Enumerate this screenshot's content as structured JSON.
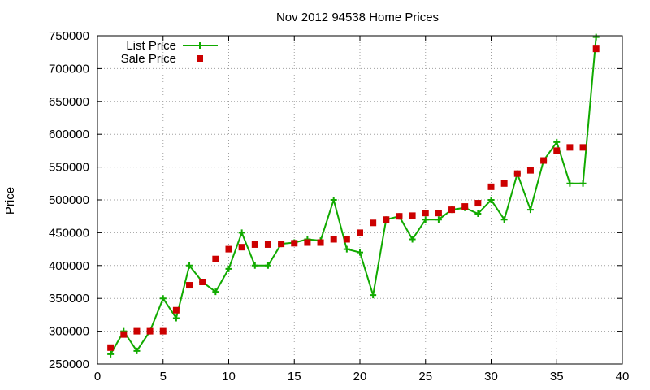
{
  "chart_data": {
    "type": "line",
    "title": "Nov 2012 94538 Home Prices",
    "xlabel": "",
    "ylabel": "Price",
    "xlim": [
      0,
      40
    ],
    "ylim": [
      250000,
      750000
    ],
    "x_ticks": [
      0,
      5,
      10,
      15,
      20,
      25,
      30,
      35,
      40
    ],
    "y_ticks": [
      250000,
      300000,
      350000,
      400000,
      450000,
      500000,
      550000,
      600000,
      650000,
      700000,
      750000
    ],
    "grid": true,
    "legend_position": "top-left",
    "x": [
      1,
      2,
      3,
      4,
      5,
      6,
      7,
      8,
      9,
      10,
      11,
      12,
      13,
      14,
      15,
      16,
      17,
      18,
      19,
      20,
      21,
      22,
      23,
      24,
      25,
      26,
      27,
      28,
      29,
      30,
      31,
      32,
      33,
      34,
      35,
      36,
      37,
      38
    ],
    "series": [
      {
        "name": "List Price",
        "style": "line-with-plus-markers",
        "color": "#11aa00",
        "values": [
          265000,
          300000,
          270000,
          300000,
          350000,
          320000,
          400000,
          375000,
          360000,
          395000,
          450000,
          400000,
          400000,
          433000,
          435000,
          440000,
          438000,
          500000,
          425000,
          420000,
          355000,
          470000,
          475000,
          440000,
          470000,
          470000,
          485000,
          488000,
          479000,
          500000,
          470000,
          540000,
          485000,
          560000,
          588000,
          525000,
          525000,
          748000
        ]
      },
      {
        "name": "Sale Price",
        "style": "square-markers",
        "color": "#cc0000",
        "values": [
          275000,
          295000,
          300000,
          300000,
          300000,
          332000,
          370000,
          375000,
          410000,
          425000,
          428000,
          432000,
          432000,
          433000,
          434000,
          435000,
          435000,
          440000,
          440000,
          450000,
          465000,
          470000,
          475000,
          476000,
          480000,
          480000,
          485000,
          490000,
          495000,
          520000,
          525000,
          540000,
          545000,
          560000,
          575000,
          580000,
          580000,
          730000
        ]
      }
    ]
  }
}
